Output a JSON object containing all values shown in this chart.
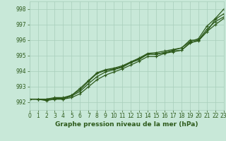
{
  "xlabel": "Graphe pression niveau de la mer (hPa)",
  "xlim": [
    0,
    23
  ],
  "ylim": [
    991.5,
    998.5
  ],
  "yticks": [
    992,
    993,
    994,
    995,
    996,
    997,
    998
  ],
  "xticks": [
    0,
    1,
    2,
    3,
    4,
    5,
    6,
    7,
    8,
    9,
    10,
    11,
    12,
    13,
    14,
    15,
    16,
    17,
    18,
    19,
    20,
    21,
    22,
    23
  ],
  "bg_color": "#c8e8d8",
  "grid_color": "#a8cebb",
  "line_color": "#2d5a1b",
  "series": [
    [
      992.2,
      992.2,
      992.1,
      992.2,
      992.2,
      992.3,
      992.55,
      993.0,
      993.45,
      993.75,
      993.95,
      994.15,
      994.4,
      994.65,
      994.95,
      994.95,
      995.15,
      995.25,
      995.35,
      995.85,
      995.95,
      996.55,
      997.0,
      997.4
    ],
    [
      992.2,
      992.2,
      992.15,
      992.2,
      992.2,
      992.4,
      992.7,
      993.2,
      993.65,
      993.95,
      994.1,
      994.25,
      994.55,
      994.75,
      995.1,
      995.1,
      995.2,
      995.3,
      995.35,
      995.8,
      996.0,
      996.7,
      997.2,
      997.5
    ],
    [
      992.2,
      992.2,
      992.2,
      992.3,
      992.3,
      992.45,
      992.8,
      993.35,
      993.85,
      994.05,
      994.15,
      994.3,
      994.6,
      994.85,
      995.15,
      995.2,
      995.3,
      995.4,
      995.5,
      996.0,
      996.0,
      996.55,
      997.35,
      997.7
    ],
    [
      992.2,
      992.2,
      992.2,
      992.25,
      992.25,
      992.45,
      992.9,
      993.4,
      993.9,
      994.1,
      994.2,
      994.35,
      994.6,
      994.8,
      995.1,
      995.1,
      995.2,
      995.35,
      995.5,
      995.9,
      996.1,
      996.9,
      997.4,
      998.0
    ]
  ],
  "marker": "+",
  "marker_size": 3.5,
  "linewidth": 0.9,
  "font_color": "#2d5a1b",
  "tick_fontsize": 5.5,
  "xlabel_fontsize": 6.5
}
